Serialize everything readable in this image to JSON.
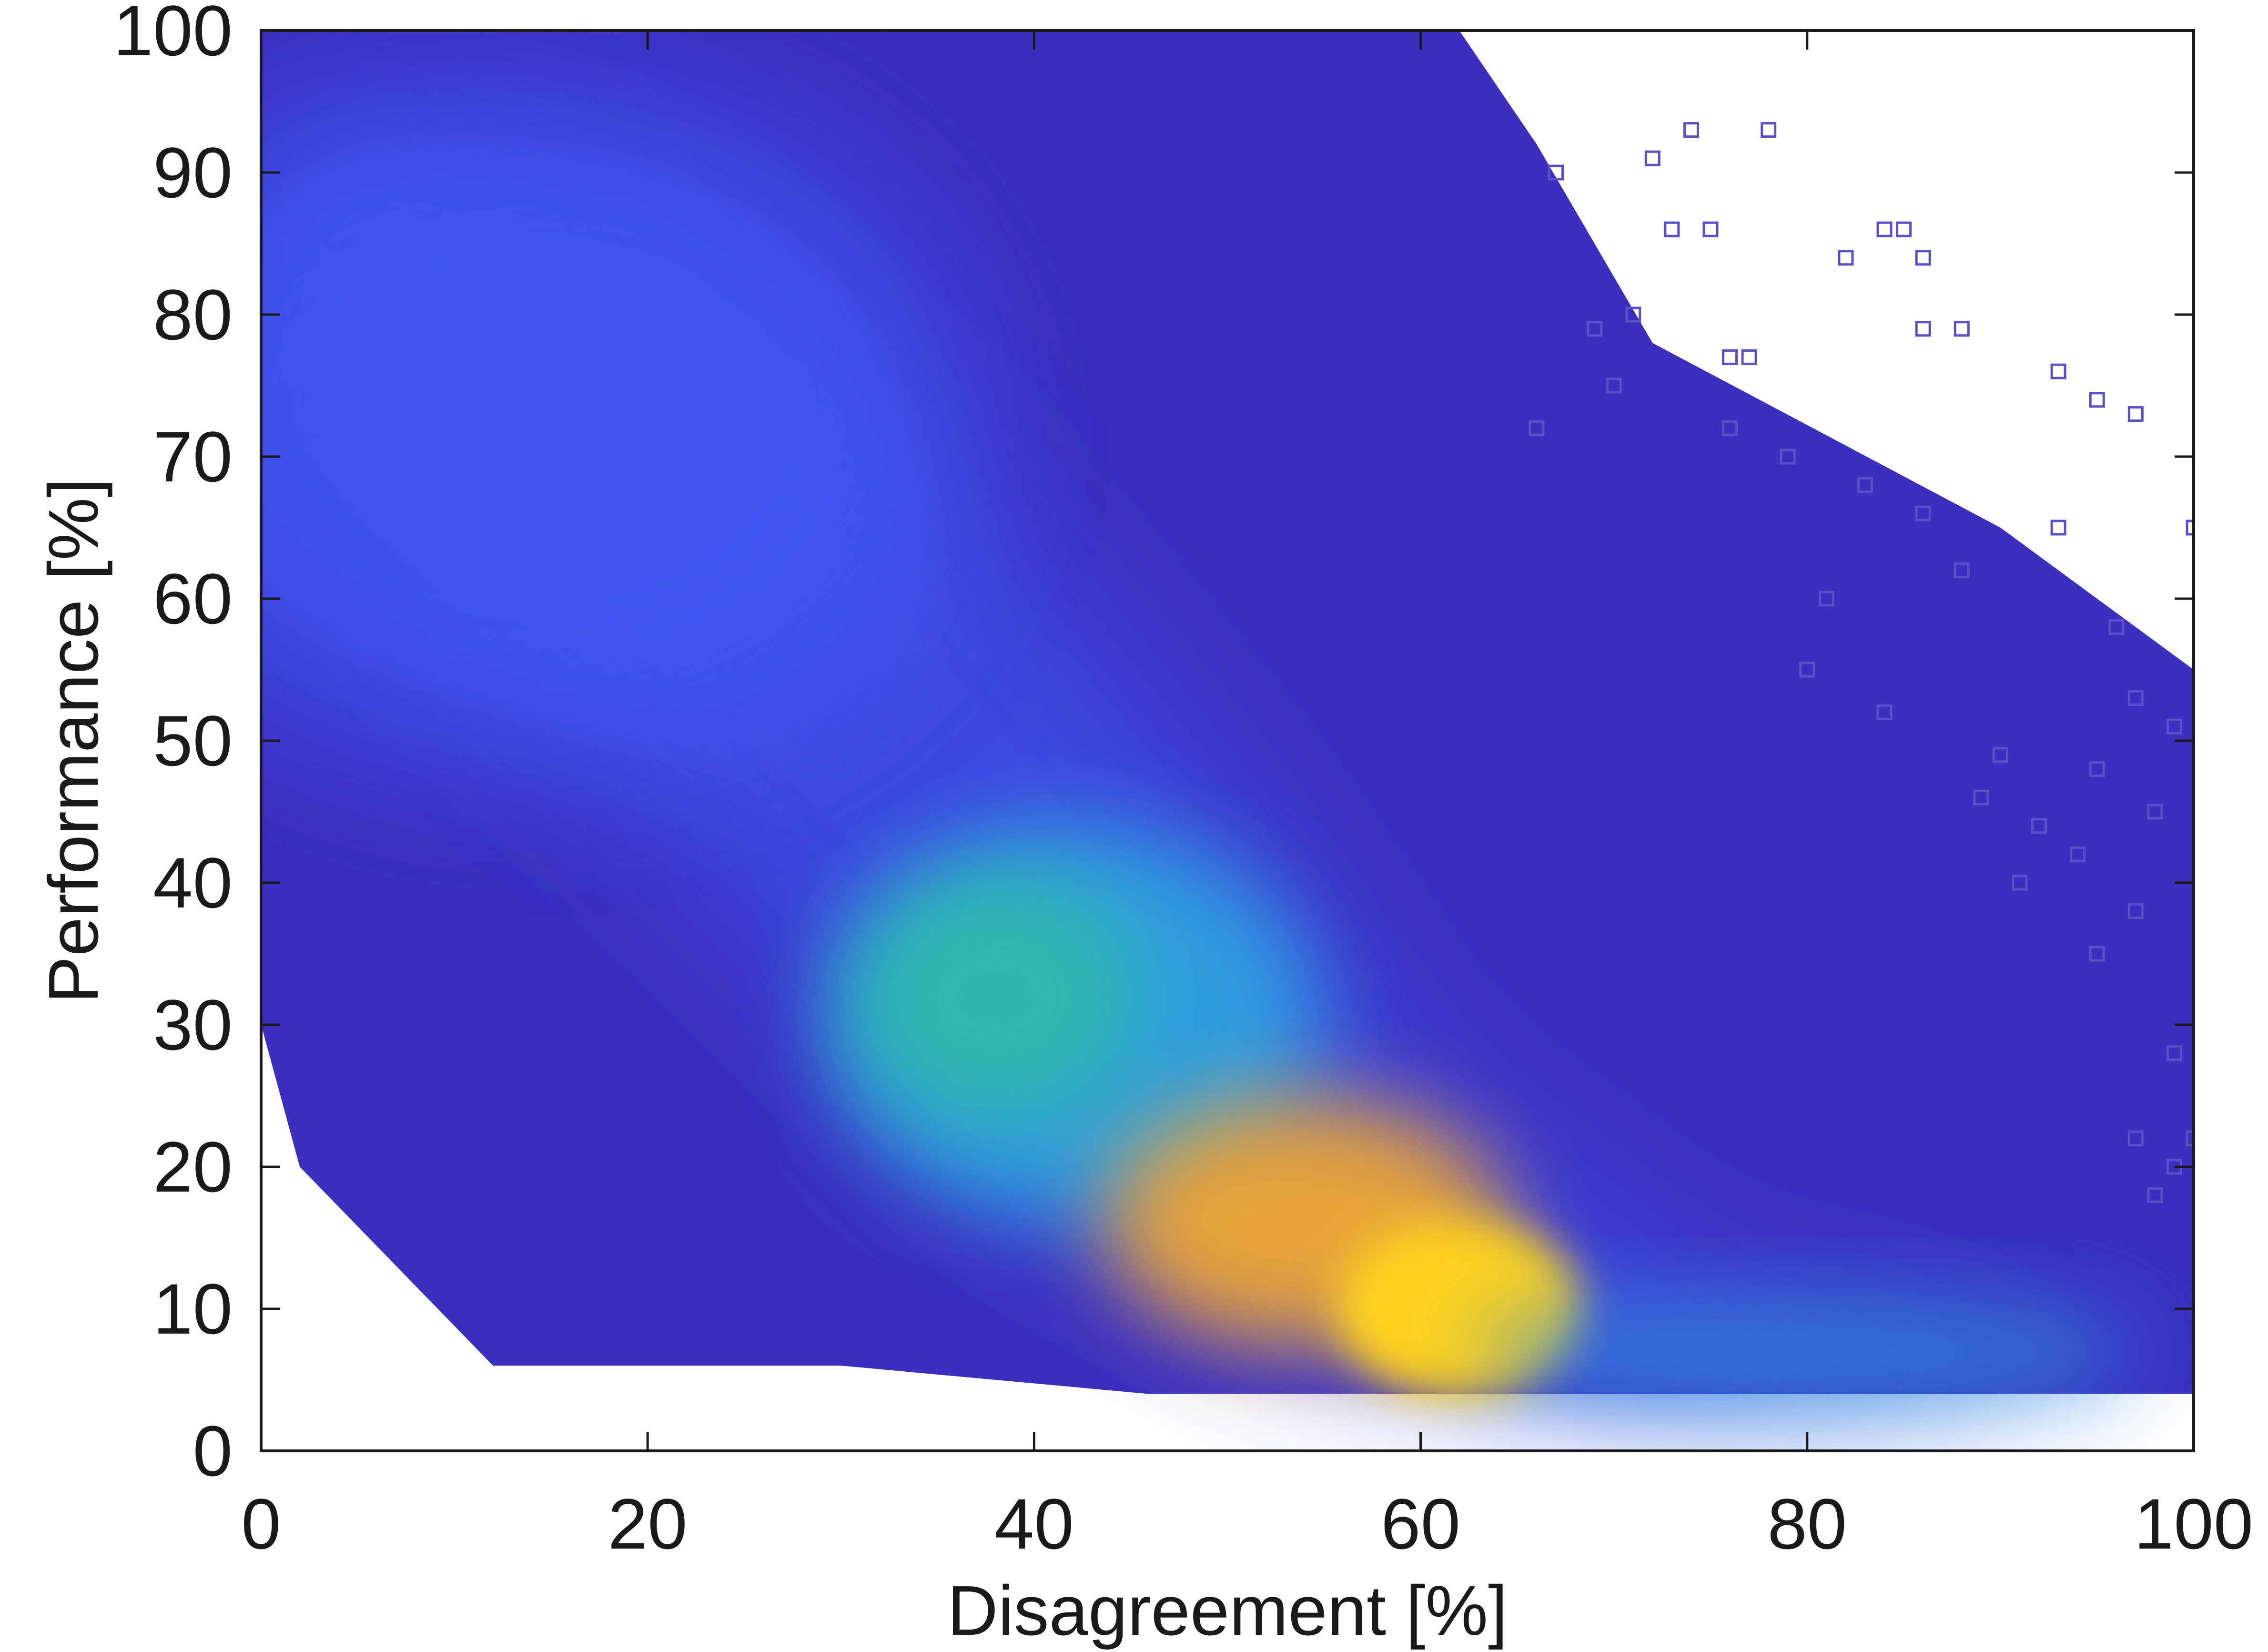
{
  "chart_data": {
    "type": "scatter",
    "title": "",
    "xlabel": "Disagreement [%]",
    "ylabel": "Performance [%]",
    "xlim": [
      0,
      100
    ],
    "ylim": [
      0,
      100
    ],
    "xticks": [
      "0",
      "20",
      "40",
      "60",
      "80",
      "100"
    ],
    "yticks": [
      "0",
      "10",
      "20",
      "30",
      "40",
      "50",
      "60",
      "70",
      "80",
      "90",
      "100"
    ],
    "grid": false,
    "legend": "none",
    "marker": "hollow-square",
    "color_encoding": "point density (blue = low, yellow = high)",
    "colors": {
      "low_density": "#3b2fc0",
      "mid_density": "#2fa6e0",
      "high_density": "#ffd21a",
      "sparse_marker": "#5a4fc8"
    },
    "density_regions": [
      {
        "x": 10,
        "y": 75,
        "density": "medium",
        "color": "#3f4fe8"
      },
      {
        "x": 40,
        "y": 30,
        "density": "high",
        "color": "#2fc0a0"
      },
      {
        "x": 52,
        "y": 18,
        "density": "high",
        "color": "#f0c030"
      },
      {
        "x": 62,
        "y": 10,
        "density": "peak",
        "color": "#ffe81a"
      }
    ],
    "sparse_points": [
      [
        74,
        93
      ],
      [
        78,
        93
      ],
      [
        72,
        91
      ],
      [
        67,
        90
      ],
      [
        84,
        86
      ],
      [
        85,
        86
      ],
      [
        75,
        86
      ],
      [
        73,
        86
      ],
      [
        82,
        84
      ],
      [
        86,
        84
      ],
      [
        76,
        77
      ],
      [
        77,
        77
      ],
      [
        86,
        79
      ],
      [
        88,
        79
      ],
      [
        93,
        76
      ],
      [
        95,
        74
      ],
      [
        97,
        73
      ],
      [
        100,
        65
      ],
      [
        93,
        65
      ],
      [
        96,
        58
      ],
      [
        97,
        53
      ],
      [
        99,
        51
      ],
      [
        95,
        48
      ],
      [
        98,
        45
      ],
      [
        86,
        66
      ],
      [
        88,
        62
      ],
      [
        81,
        60
      ],
      [
        80,
        55
      ],
      [
        84,
        52
      ],
      [
        90,
        49
      ],
      [
        99,
        28
      ],
      [
        100,
        22
      ],
      [
        99,
        20
      ],
      [
        97,
        22
      ],
      [
        98,
        18
      ],
      [
        76,
        72
      ],
      [
        79,
        70
      ],
      [
        83,
        68
      ],
      [
        70,
        75
      ],
      [
        71,
        80
      ],
      [
        69,
        79
      ],
      [
        66,
        72
      ],
      [
        95,
        35
      ],
      [
        97,
        38
      ],
      [
        94,
        42
      ],
      [
        92,
        44
      ],
      [
        91,
        40
      ],
      [
        89,
        46
      ]
    ]
  }
}
